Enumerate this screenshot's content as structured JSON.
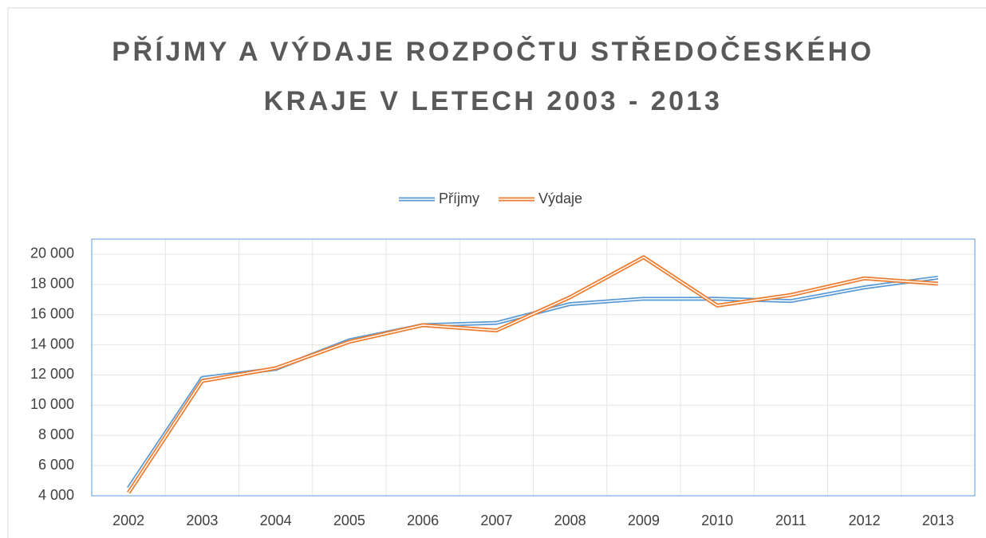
{
  "chart_data": {
    "type": "line",
    "title": "PŘÍJMY A VÝDAJE ROZPOČTU STŘEDOČESKÉHO KRAJE V LETECH 2003 - 2013",
    "categories": [
      "2002",
      "2003",
      "2004",
      "2005",
      "2006",
      "2007",
      "2008",
      "2009",
      "2010",
      "2011",
      "2012",
      "2013"
    ],
    "series": [
      {
        "name": "Příjmy",
        "color": "#5b9bd5",
        "values": [
          4500,
          11800,
          12400,
          14300,
          15300,
          15450,
          16700,
          17050,
          17050,
          16900,
          17800,
          18450
        ]
      },
      {
        "name": "Výdaje",
        "color": "#ed7d31",
        "values": [
          4200,
          11600,
          12450,
          14200,
          15300,
          14950,
          17150,
          19800,
          16600,
          17300,
          18400,
          18050
        ]
      }
    ],
    "ylim": [
      4000,
      21000
    ],
    "yticks": [
      {
        "value": 4000,
        "label": "4 000"
      },
      {
        "value": 6000,
        "label": "6 000"
      },
      {
        "value": 8000,
        "label": "8 000"
      },
      {
        "value": 10000,
        "label": "10 000"
      },
      {
        "value": 12000,
        "label": "12 000"
      },
      {
        "value": 14000,
        "label": "14 000"
      },
      {
        "value": 16000,
        "label": "16 000"
      },
      {
        "value": 18000,
        "label": "18 000"
      },
      {
        "value": 20000,
        "label": "20 000"
      }
    ],
    "grid": true,
    "legend": "top"
  }
}
